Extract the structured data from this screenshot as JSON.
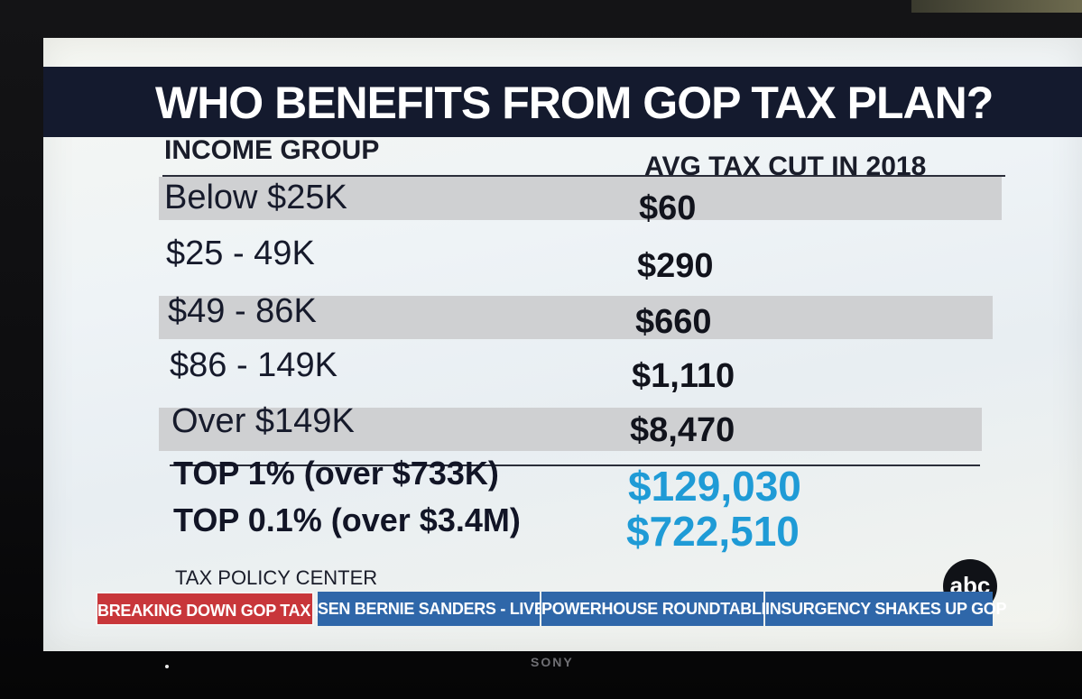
{
  "title": "WHO BENEFITS FROM GOP TAX PLAN?",
  "headers": {
    "income_group": "INCOME GROUP",
    "avg_tax_cut": "AVG TAX CUT IN 2018"
  },
  "rows": [
    {
      "group": "Below $25K",
      "cut": "$60"
    },
    {
      "group": "$25 - 49K",
      "cut": "$290"
    },
    {
      "group": "$49 - 86K",
      "cut": "$660"
    },
    {
      "group": "$86 - 149K",
      "cut": "$1,110"
    },
    {
      "group": "Over $149K",
      "cut": "$8,470"
    }
  ],
  "top_rows": [
    {
      "group": "TOP 1% (over $733K)",
      "cut": "$129,030"
    },
    {
      "group": "TOP 0.1% (over $3.4M)",
      "cut": "$722,510"
    }
  ],
  "source": "TAX POLICY CENTER",
  "logo": "abc",
  "ticker": [
    "BREAKING DOWN GOP TAX PLAN",
    "SEN BERNIE SANDERS - LIVE",
    "POWERHOUSE ROUNDTABLE!",
    "INSURGENCY SHAKES UP GOP"
  ],
  "tv_brand": "SONY",
  "colors": {
    "title_bar": "#141a2e",
    "highlight_value": "#1f9bd6",
    "ticker_active": "#c8363a",
    "ticker_inactive": "#2f67a9"
  }
}
